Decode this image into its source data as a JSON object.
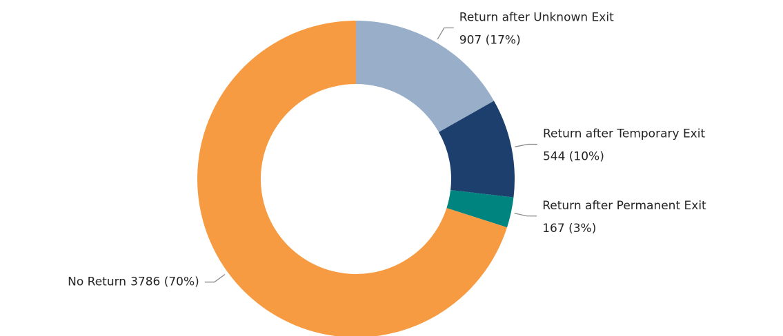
{
  "chart_data": {
    "type": "donut",
    "categories": [
      "Return after Unknown Exit",
      "Return after Temporary Exit",
      "Return after Permanent Exit",
      "No Return"
    ],
    "values": [
      907,
      544,
      167,
      3786
    ],
    "value_labels": [
      "907 (17%)",
      "544 (10%)",
      "167 (3%)",
      "3786 (70%)"
    ],
    "colors": [
      "#98aec9",
      "#1c3f6e",
      "#008480",
      "#f79b42"
    ]
  }
}
